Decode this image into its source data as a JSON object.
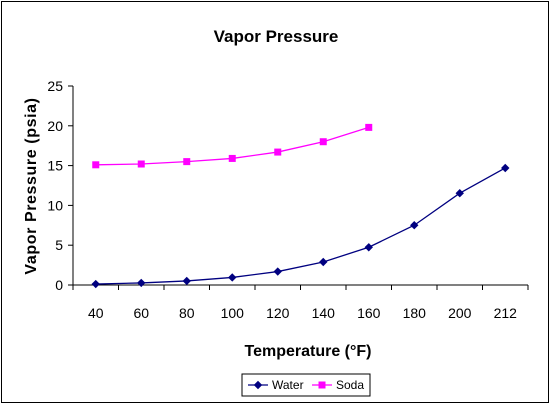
{
  "chart_data": {
    "type": "line",
    "title": "Vapor Pressure",
    "xlabel": "Temperature (°F)",
    "ylabel": "Vapor Pressure (psia)",
    "categories": [
      "40",
      "60",
      "80",
      "100",
      "120",
      "140",
      "160",
      "180",
      "200",
      "212"
    ],
    "ylim": [
      0,
      25
    ],
    "yticks": [
      "0",
      "5",
      "10",
      "15",
      "20",
      "25"
    ],
    "grid": false,
    "legend": "bottom",
    "series": [
      {
        "name": "Water",
        "color": "#000080",
        "marker": "diamond",
        "values": [
          0.12,
          0.26,
          0.51,
          0.95,
          1.69,
          2.89,
          4.74,
          7.51,
          11.53,
          14.7
        ]
      },
      {
        "name": "Soda",
        "color": "#FF00FF",
        "marker": "square",
        "values": [
          15.1,
          15.2,
          15.5,
          15.9,
          16.7,
          18.0,
          19.8,
          null,
          null,
          null
        ]
      }
    ]
  }
}
